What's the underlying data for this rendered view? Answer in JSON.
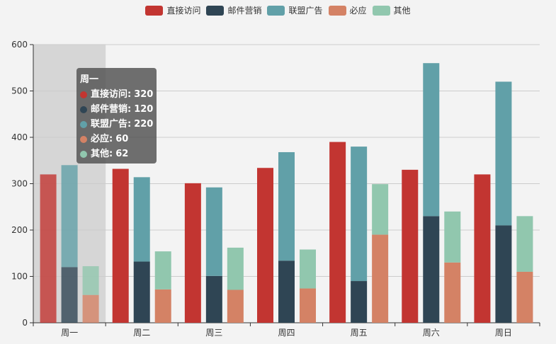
{
  "chart_data": {
    "type": "bar",
    "categories": [
      "周一",
      "周二",
      "周三",
      "周四",
      "周五",
      "周六",
      "周日"
    ],
    "series": [
      {
        "name": "直接访问",
        "color": "#c23531",
        "values": [
          320,
          332,
          301,
          334,
          390,
          330,
          320
        ]
      },
      {
        "name": "邮件营销",
        "color": "#2f4554",
        "values": [
          120,
          132,
          101,
          134,
          90,
          230,
          210
        ],
        "stack": "广告"
      },
      {
        "name": "联盟广告",
        "color": "#61a0a8",
        "values": [
          220,
          182,
          191,
          234,
          290,
          330,
          310
        ],
        "stack": "广告"
      },
      {
        "name": "必应",
        "color": "#d48265",
        "values": [
          60,
          72,
          71,
          74,
          190,
          130,
          110
        ],
        "stack": "搜索引擎"
      },
      {
        "name": "其他",
        "color": "#91c7ae",
        "values": [
          62,
          82,
          91,
          84,
          109,
          110,
          120
        ],
        "stack": "搜索引擎"
      }
    ],
    "y_ticks": [
      "0",
      "100",
      "200",
      "300",
      "400",
      "500",
      "600"
    ],
    "ylim": [
      0,
      600
    ],
    "grid": true,
    "legend_position": "top-center",
    "highlighted_category": "周一"
  },
  "tooltip": {
    "title": "周一",
    "sep": ":",
    "rows": [
      {
        "name": "直接访问",
        "value": "320",
        "color": "#c23531"
      },
      {
        "name": "邮件营销",
        "value": "120",
        "color": "#2f4554"
      },
      {
        "name": "联盟广告",
        "value": "220",
        "color": "#61a0a8"
      },
      {
        "name": "必应",
        "value": "60",
        "color": "#d48265"
      },
      {
        "name": "其他",
        "value": "62",
        "color": "#91c7ae"
      }
    ]
  }
}
